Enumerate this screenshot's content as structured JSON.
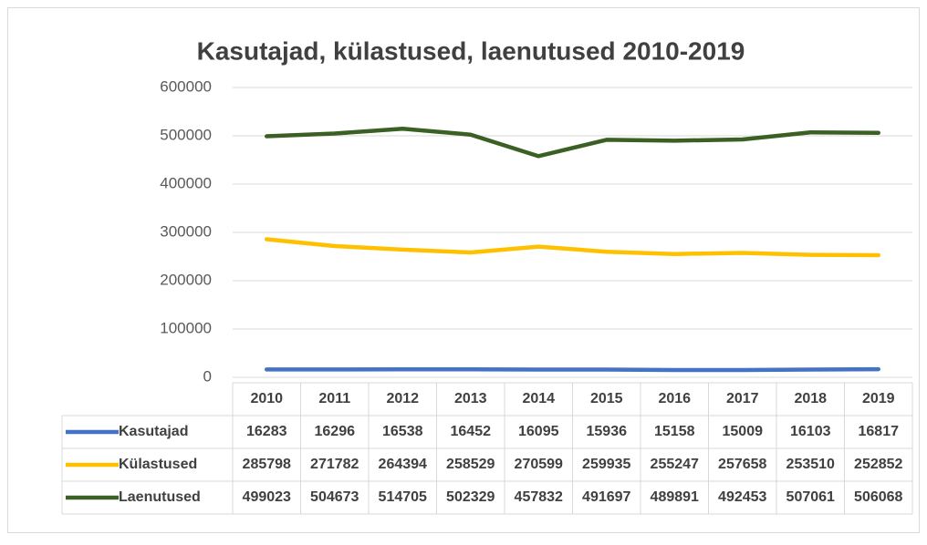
{
  "chart_data": {
    "type": "line",
    "title": "Kasutajad, külastused, laenutused 2010-2019",
    "categories": [
      "2010",
      "2011",
      "2012",
      "2013",
      "2014",
      "2015",
      "2016",
      "2017",
      "2018",
      "2019"
    ],
    "series": [
      {
        "name": "Kasutajad",
        "color": "#4472c4",
        "values": [
          16283,
          16296,
          16538,
          16452,
          16095,
          15936,
          15158,
          15009,
          16103,
          16817
        ]
      },
      {
        "name": "Külastused",
        "color": "#ffc000",
        "values": [
          285798,
          271782,
          264394,
          258529,
          270599,
          259935,
          255247,
          257658,
          253510,
          252852
        ]
      },
      {
        "name": "Laenutused",
        "color": "#3b6024",
        "values": [
          499023,
          504673,
          514705,
          502329,
          457832,
          491697,
          489891,
          492453,
          507061,
          506068
        ]
      }
    ],
    "ylim": [
      0,
      600000
    ],
    "yticks": [
      0,
      100000,
      200000,
      300000,
      400000,
      500000,
      600000
    ],
    "grid": true
  }
}
